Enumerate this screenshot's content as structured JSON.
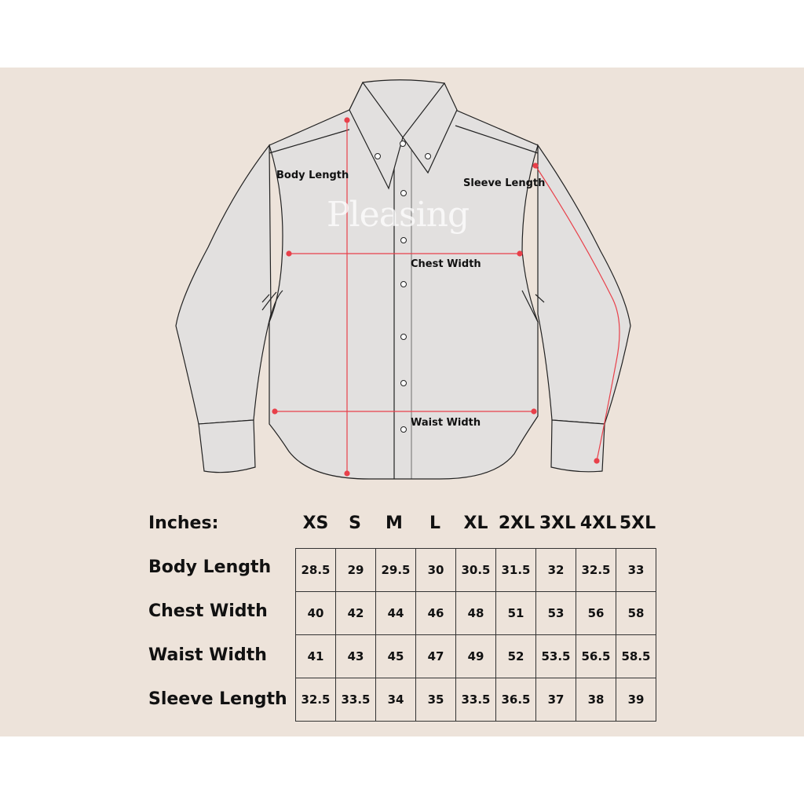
{
  "watermark": "Pleasing",
  "diagram_labels": {
    "body_length": "Body Length",
    "sleeve_length": "Sleeve Length",
    "chest_width": "Chest Width",
    "waist_width": "Waist Width"
  },
  "colors": {
    "background": "#ede3da",
    "shirt": "#e2e0df",
    "measure_line": "#e8404a"
  },
  "table": {
    "unit_label": "Inches:",
    "sizes": [
      "XS",
      "S",
      "M",
      "L",
      "XL",
      "2XL",
      "3XL",
      "4XL",
      "5XL"
    ],
    "rows": [
      {
        "label": "Body Length",
        "values": [
          "28.5",
          "29",
          "29.5",
          "30",
          "30.5",
          "31.5",
          "32",
          "32.5",
          "33"
        ]
      },
      {
        "label": "Chest Width",
        "values": [
          "40",
          "42",
          "44",
          "46",
          "48",
          "51",
          "53",
          "56",
          "58"
        ]
      },
      {
        "label": "Waist Width",
        "values": [
          "41",
          "43",
          "45",
          "47",
          "49",
          "52",
          "53.5",
          "56.5",
          "58.5"
        ]
      },
      {
        "label": "Sleeve Length",
        "values": [
          "32.5",
          "33.5",
          "34",
          "35",
          "33.5",
          "36.5",
          "37",
          "38",
          "39"
        ]
      }
    ]
  }
}
